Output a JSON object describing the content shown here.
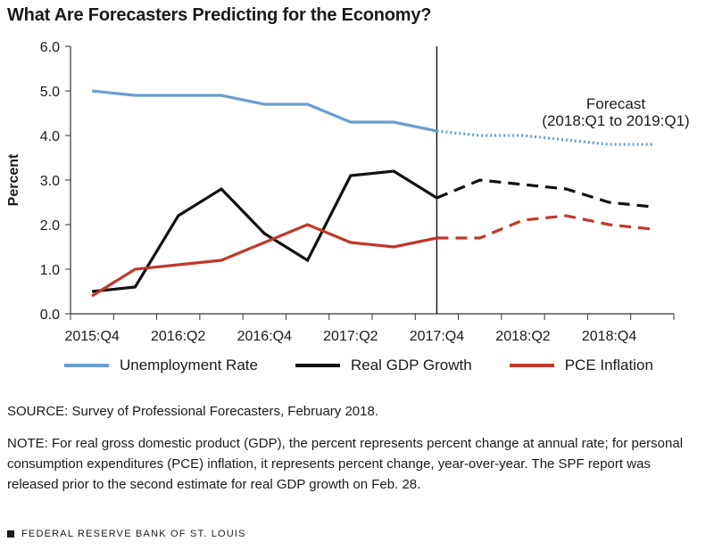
{
  "title": "What Are Forecasters Predicting for the Economy?",
  "colors": {
    "unemployment": "#6a9ecf",
    "gdp": "#111111",
    "pce": "#c0392b"
  },
  "chart_data": {
    "type": "line",
    "title": "What Are Forecasters Predicting for the Economy?",
    "xlabel": "",
    "ylabel": "Percent",
    "ylim": [
      0,
      6
    ],
    "yticks": [
      "0.0",
      "1.0",
      "2.0",
      "3.0",
      "4.0",
      "5.0",
      "6.0"
    ],
    "x": [
      "2015:Q4",
      "2016:Q1",
      "2016:Q2",
      "2016:Q3",
      "2016:Q4",
      "2017:Q1",
      "2017:Q2",
      "2017:Q3",
      "2017:Q4",
      "2018:Q1",
      "2018:Q2",
      "2018:Q3",
      "2018:Q4",
      "2019:Q1"
    ],
    "xtick_labels": [
      "2015:Q4",
      "2016:Q2",
      "2016:Q4",
      "2017:Q2",
      "2017:Q4",
      "2018:Q2",
      "2018:Q4"
    ],
    "forecast_start_index": 8,
    "forecast_label": [
      "Forecast",
      "(2018:Q1 to 2019:Q1)"
    ],
    "series": [
      {
        "name": "Unemployment Rate",
        "key": "unemployment",
        "forecast_style": "dotted",
        "values": [
          5.0,
          4.9,
          4.9,
          4.9,
          4.7,
          4.7,
          4.3,
          4.3,
          4.1,
          4.0,
          4.0,
          3.9,
          3.8,
          3.8
        ]
      },
      {
        "name": "Real GDP Growth",
        "key": "gdp",
        "forecast_style": "dashed",
        "values": [
          0.5,
          0.6,
          2.2,
          2.8,
          1.8,
          1.2,
          3.1,
          3.2,
          2.6,
          3.0,
          2.9,
          2.8,
          2.5,
          2.4
        ]
      },
      {
        "name": "PCE Inflation",
        "key": "pce",
        "forecast_style": "dashed",
        "values": [
          0.4,
          1.0,
          1.1,
          1.2,
          1.6,
          2.0,
          1.6,
          1.5,
          1.7,
          1.7,
          2.1,
          2.2,
          2.0,
          1.9
        ]
      }
    ]
  },
  "legend": [
    "Unemployment Rate",
    "Real GDP Growth",
    "PCE Inflation"
  ],
  "source": "SOURCE: Survey of Professional Forecasters, February 2018.",
  "note": "NOTE: For real gross domestic product (GDP), the percent represents percent change at annual rate; for personal consumption expenditures (PCE) inflation, it represents percent change, year-over-year. The SPF report was released prior to the second estimate for real GDP growth on Feb. 28.",
  "footer": "FEDERAL RESERVE BANK OF ST. LOUIS"
}
